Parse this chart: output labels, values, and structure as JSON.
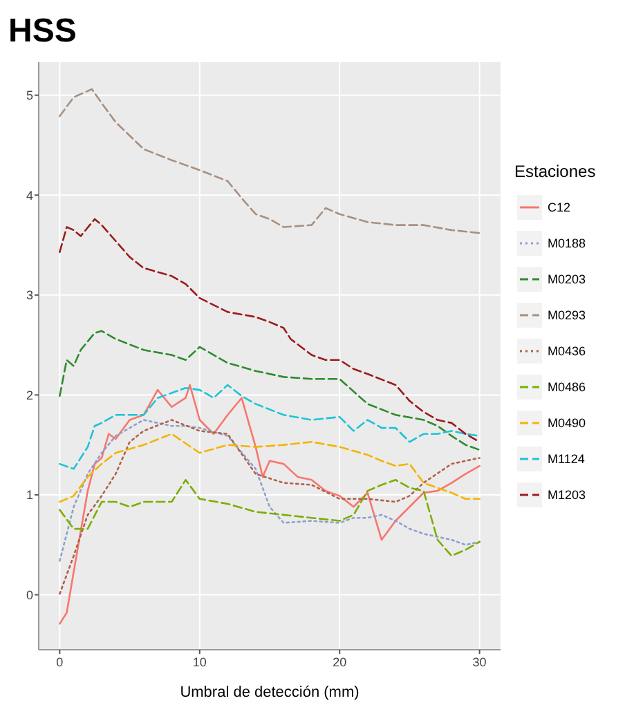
{
  "chart_data": {
    "type": "line",
    "title": "HSS",
    "xlabel": "Umbral de detección (mm)",
    "legend_title": "Estaciones",
    "legend": "right",
    "grid": true,
    "xlim": [
      -1.5,
      31.5
    ],
    "xticks": [
      0,
      10,
      20,
      30
    ],
    "ylim": [
      -0.55,
      5.33
    ],
    "yticks": [
      0,
      1,
      2,
      3,
      4,
      5
    ],
    "series": [
      {
        "name": "C12",
        "color": "#f8766d",
        "line_style": "solid",
        "x": [
          0,
          0.5,
          1,
          2,
          2.5,
          3,
          3.5,
          4,
          5,
          6,
          7,
          8,
          9,
          9.3,
          10,
          11,
          12,
          13,
          14,
          14.5,
          15,
          16,
          17,
          18,
          19,
          20,
          21,
          22,
          23,
          24,
          25,
          26,
          27,
          28,
          29,
          30
        ],
        "values": [
          -0.29,
          -0.18,
          0.23,
          1.04,
          1.31,
          1.37,
          1.61,
          1.56,
          1.75,
          1.8,
          2.05,
          1.88,
          1.97,
          2.1,
          1.75,
          1.61,
          1.8,
          1.97,
          1.48,
          1.18,
          1.34,
          1.31,
          1.18,
          1.15,
          1.04,
          0.99,
          0.88,
          1.02,
          0.55,
          0.74,
          0.88,
          1.02,
          1.04,
          1.12,
          1.21,
          1.29
        ]
      },
      {
        "name": "M0188",
        "color": "#8da0cb",
        "line_style": "dotted",
        "x": [
          0,
          0.5,
          1,
          2,
          3,
          4,
          5,
          6,
          8,
          9,
          10,
          12,
          14,
          15,
          16,
          18,
          20,
          21,
          22,
          23,
          24,
          25,
          26,
          27,
          28,
          29,
          30
        ],
        "values": [
          0.34,
          0.61,
          0.88,
          1.21,
          1.42,
          1.59,
          1.67,
          1.75,
          1.69,
          1.69,
          1.67,
          1.59,
          1.26,
          0.88,
          0.72,
          0.74,
          0.72,
          0.77,
          0.77,
          0.8,
          0.74,
          0.66,
          0.61,
          0.58,
          0.55,
          0.5,
          0.53
        ]
      },
      {
        "name": "M0203",
        "color": "#2e8b2e",
        "line_style": "dashed",
        "x": [
          0,
          0.5,
          1,
          1.5,
          2.5,
          3,
          4,
          6,
          8,
          9,
          10,
          12,
          14,
          16,
          18,
          20,
          22,
          24,
          26,
          27,
          28,
          29,
          30
        ],
        "values": [
          1.99,
          2.35,
          2.29,
          2.45,
          2.62,
          2.64,
          2.56,
          2.45,
          2.4,
          2.35,
          2.48,
          2.32,
          2.24,
          2.18,
          2.16,
          2.16,
          1.91,
          1.8,
          1.75,
          1.69,
          1.59,
          1.5,
          1.45
        ]
      },
      {
        "name": "M0293",
        "color": "#a89080",
        "line_style": "dashed",
        "x": [
          0,
          1,
          2.3,
          3,
          4,
          6,
          8,
          10,
          12,
          13,
          14,
          15,
          16,
          18,
          19,
          20,
          22,
          24,
          26,
          28,
          30
        ],
        "values": [
          4.79,
          4.98,
          5.06,
          4.92,
          4.73,
          4.46,
          4.35,
          4.25,
          4.14,
          3.97,
          3.81,
          3.76,
          3.68,
          3.7,
          3.87,
          3.81,
          3.73,
          3.7,
          3.7,
          3.65,
          3.62
        ]
      },
      {
        "name": "M0436",
        "color": "#b0604a",
        "line_style": "dotted",
        "x": [
          0,
          1,
          2,
          3,
          4,
          5,
          6,
          8,
          10,
          12,
          14,
          16,
          18,
          20,
          22,
          24,
          25,
          26,
          28,
          30
        ],
        "values": [
          0.01,
          0.39,
          0.8,
          0.99,
          1.21,
          1.53,
          1.64,
          1.75,
          1.64,
          1.61,
          1.21,
          1.12,
          1.1,
          0.96,
          0.96,
          0.93,
          0.99,
          1.12,
          1.31,
          1.37
        ]
      },
      {
        "name": "M0486",
        "color": "#7cae00",
        "line_style": "dashed",
        "x": [
          0,
          1,
          2,
          3,
          4,
          5,
          6,
          8,
          9,
          10,
          12,
          14,
          16,
          18,
          20,
          21,
          22,
          23,
          24,
          25,
          26,
          27,
          28,
          29,
          30
        ],
        "values": [
          0.85,
          0.66,
          0.66,
          0.93,
          0.93,
          0.88,
          0.93,
          0.93,
          1.15,
          0.96,
          0.91,
          0.83,
          0.8,
          0.77,
          0.74,
          0.8,
          1.04,
          1.1,
          1.15,
          1.07,
          1.04,
          0.55,
          0.39,
          0.45,
          0.53
        ]
      },
      {
        "name": "M0490",
        "color": "#f4b400",
        "line_style": "dashed",
        "x": [
          0,
          1,
          2,
          3,
          4,
          6,
          8,
          10,
          12,
          14,
          16,
          18,
          20,
          22,
          23,
          24,
          25,
          26,
          27,
          28,
          29,
          30
        ],
        "values": [
          0.93,
          0.99,
          1.18,
          1.31,
          1.42,
          1.5,
          1.61,
          1.42,
          1.5,
          1.48,
          1.5,
          1.53,
          1.48,
          1.4,
          1.34,
          1.29,
          1.31,
          1.12,
          1.07,
          1.02,
          0.96,
          0.96
        ]
      },
      {
        "name": "M1124",
        "color": "#1fc3d6",
        "line_style": "dashed",
        "x": [
          0,
          1,
          2,
          2.5,
          3,
          4,
          6,
          7,
          8,
          9,
          10,
          11,
          12,
          13,
          14,
          16,
          18,
          20,
          21,
          22,
          23,
          24,
          25,
          26,
          27,
          28,
          29,
          30
        ],
        "values": [
          1.31,
          1.26,
          1.48,
          1.69,
          1.72,
          1.8,
          1.8,
          1.97,
          2.02,
          2.07,
          2.05,
          1.97,
          2.1,
          1.99,
          1.91,
          1.8,
          1.75,
          1.78,
          1.64,
          1.75,
          1.67,
          1.67,
          1.53,
          1.61,
          1.61,
          1.64,
          1.61,
          1.59
        ]
      },
      {
        "name": "M1203",
        "color": "#9b1c1c",
        "line_style": "dashed",
        "x": [
          0,
          0.5,
          1,
          1.5,
          2.5,
          3,
          4,
          5,
          6,
          8,
          9,
          10,
          12,
          14,
          15,
          16,
          16.5,
          18,
          19,
          20,
          21,
          22,
          24,
          25,
          26,
          27,
          28,
          29,
          30
        ],
        "values": [
          3.43,
          3.68,
          3.65,
          3.59,
          3.76,
          3.7,
          3.54,
          3.38,
          3.27,
          3.19,
          3.11,
          2.97,
          2.83,
          2.78,
          2.73,
          2.67,
          2.56,
          2.4,
          2.35,
          2.35,
          2.26,
          2.21,
          2.1,
          1.94,
          1.83,
          1.75,
          1.72,
          1.61,
          1.53
        ]
      }
    ]
  }
}
